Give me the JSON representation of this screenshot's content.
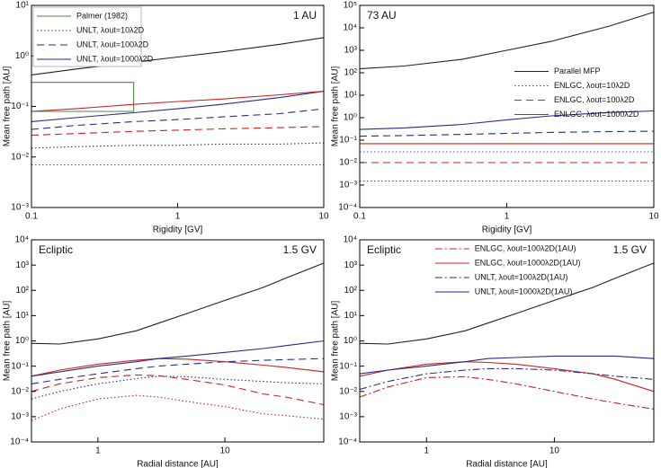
{
  "chart_data": [
    {
      "type": "line",
      "xscale": "log",
      "yscale": "log",
      "xlabel": "Rigidity [GV]",
      "ylabel": "Mean free path [AU]",
      "annotations": [
        {
          "text": "1 AU",
          "corner": "upper right"
        }
      ],
      "legend": "upper left",
      "xlim": [
        0.1,
        10
      ],
      "xticks": [
        0.1,
        1,
        10
      ],
      "ylim": [
        0.001,
        10
      ],
      "yticks": [
        {
          "value": 0.001,
          "label": "10⁻³"
        },
        {
          "value": 0.01,
          "label": "10⁻²"
        },
        {
          "value": 0.1,
          "label": "10⁻¹"
        },
        {
          "value": 1,
          "label": "10⁰"
        },
        {
          "value": 10,
          "label": "10¹"
        }
      ],
      "x": [
        0.1,
        0.2,
        0.5,
        1,
        2,
        5,
        10
      ],
      "series": [
        {
          "color": "#222222",
          "dash": "solid",
          "values": [
            0.42,
            0.55,
            0.75,
            0.95,
            1.2,
            1.7,
            2.3
          ]
        },
        {
          "name": "Palmer (1982)",
          "color": "#4a8a4a",
          "dash": "solid",
          "x": [
            0.1,
            0.5,
            0.5,
            0.1
          ],
          "values": [
            0.3,
            0.3,
            0.08,
            0.08
          ]
        },
        {
          "name": "UNLT, λout=10λ2D",
          "color": "#2a2a8a",
          "dash": "dotted",
          "values": [
            0.015,
            0.016,
            0.017,
            0.017,
            0.018,
            0.018,
            0.019
          ]
        },
        {
          "name": "UNLT, λout=100λ2D",
          "color": "#2a2a8a",
          "dash": "dashed",
          "values": [
            0.035,
            0.042,
            0.05,
            0.055,
            0.062,
            0.072,
            0.09
          ]
        },
        {
          "name": "UNLT, λout=1000λ2D",
          "color": "#2a2a8a",
          "dash": "solid",
          "values": [
            0.05,
            0.06,
            0.075,
            0.09,
            0.11,
            0.15,
            0.2
          ]
        },
        {
          "color": "#cc2222",
          "dash": "dotted",
          "values": [
            0.007,
            0.007,
            0.007,
            0.007,
            0.007,
            0.007,
            0.007
          ]
        },
        {
          "color": "#cc2222",
          "dash": "dashed",
          "values": [
            0.027,
            0.029,
            0.032,
            0.034,
            0.036,
            0.038,
            0.04
          ]
        },
        {
          "color": "#cc2222",
          "dash": "solid",
          "values": [
            0.08,
            0.09,
            0.11,
            0.125,
            0.14,
            0.17,
            0.2
          ]
        }
      ]
    },
    {
      "type": "line",
      "xscale": "log",
      "yscale": "log",
      "xlabel": "Rigidity [GV]",
      "ylabel": "Mean free path [AU]",
      "annotations": [
        {
          "text": "73 AU",
          "corner": "upper left"
        }
      ],
      "legend": "center right",
      "xlim": [
        0.1,
        10
      ],
      "xticks": [
        0.1,
        1,
        10
      ],
      "ylim": [
        0.0001,
        100000
      ],
      "yticks": [
        {
          "value": 0.0001,
          "label": "10⁻⁴"
        },
        {
          "value": 0.001,
          "label": "10⁻³"
        },
        {
          "value": 0.01,
          "label": "10⁻²"
        },
        {
          "value": 0.1,
          "label": "10⁻¹"
        },
        {
          "value": 1,
          "label": "10⁰"
        },
        {
          "value": 10,
          "label": "10¹"
        },
        {
          "value": 100,
          "label": "10²"
        },
        {
          "value": 1000,
          "label": "10³"
        },
        {
          "value": 10000,
          "label": "10⁴"
        },
        {
          "value": 100000,
          "label": "10⁵"
        }
      ],
      "x": [
        0.1,
        0.2,
        0.5,
        1,
        2,
        5,
        10
      ],
      "series": [
        {
          "name": "Parallel MFP",
          "color": "#222222",
          "dash": "solid",
          "values": [
            150,
            200,
            400,
            1000,
            2500,
            12000,
            50000
          ]
        },
        {
          "name": "ENLGC, λout=10λ2D",
          "color": "#cc2222",
          "dash": "dotted",
          "values": [
            0.0015,
            0.0015,
            0.0015,
            0.0015,
            0.0015,
            0.0015,
            0.0015
          ]
        },
        {
          "name": "ENLGC, λout=100λ2D",
          "color": "#cc2222",
          "dash": "dashed",
          "values": [
            0.01,
            0.01,
            0.01,
            0.01,
            0.01,
            0.01,
            0.01
          ]
        },
        {
          "name": "ENLGC, λout=1000λ2D",
          "color": "#cc2222",
          "dash": "solid",
          "values": [
            0.07,
            0.07,
            0.07,
            0.07,
            0.07,
            0.07,
            0.07
          ]
        },
        {
          "color": "#6a6aaa",
          "dash": "dotted",
          "values": [
            0.03,
            0.03,
            0.03,
            0.03,
            0.03,
            0.03,
            0.03
          ]
        },
        {
          "color": "#2a2a8a",
          "dash": "dashed",
          "values": [
            0.15,
            0.16,
            0.18,
            0.2,
            0.22,
            0.24,
            0.25
          ]
        },
        {
          "color": "#2a2a8a",
          "dash": "solid",
          "values": [
            0.3,
            0.35,
            0.5,
            0.8,
            1.2,
            1.7,
            2
          ]
        }
      ]
    },
    {
      "type": "line",
      "xscale": "log",
      "yscale": "log",
      "xlabel": "Radial distance [AU]",
      "ylabel": "Mean free path [AU]",
      "annotations": [
        {
          "text": "Ecliptic",
          "corner": "upper left"
        },
        {
          "text": "1.5 GV",
          "corner": "upper right"
        }
      ],
      "xlim": [
        0.3,
        60
      ],
      "xticks": [
        1,
        10
      ],
      "ylim": [
        0.0001,
        10000
      ],
      "yticks": [
        {
          "value": 0.0001,
          "label": "10⁻⁴"
        },
        {
          "value": 0.001,
          "label": "10⁻³"
        },
        {
          "value": 0.01,
          "label": "10⁻²"
        },
        {
          "value": 0.1,
          "label": "10⁻¹"
        },
        {
          "value": 1,
          "label": "10⁰"
        },
        {
          "value": 10,
          "label": "10¹"
        },
        {
          "value": 100,
          "label": "10²"
        },
        {
          "value": 1000,
          "label": "10³"
        },
        {
          "value": 10000,
          "label": "10⁴"
        }
      ],
      "x": [
        0.3,
        0.5,
        1,
        2,
        3,
        5,
        10,
        20,
        30,
        60
      ],
      "series": [
        {
          "color": "#222222",
          "dash": "solid",
          "values": [
            0.8,
            0.75,
            1.2,
            2.5,
            5,
            12,
            40,
            130,
            300,
            1200
          ]
        },
        {
          "color": "#cc2222",
          "dash": "solid",
          "values": [
            0.04,
            0.07,
            0.12,
            0.17,
            0.2,
            0.19,
            0.15,
            0.11,
            0.09,
            0.06
          ]
        },
        {
          "color": "#cc2222",
          "dash": "dashed",
          "values": [
            0.01,
            0.02,
            0.035,
            0.045,
            0.042,
            0.03,
            0.018,
            0.008,
            0.006,
            0.003
          ]
        },
        {
          "color": "#cc2222",
          "dash": "dotted",
          "values": [
            0.0007,
            0.002,
            0.005,
            0.007,
            0.006,
            0.004,
            0.0025,
            0.0013,
            0.0011,
            0.0008
          ]
        },
        {
          "color": "#2a2a8a",
          "dash": "solid",
          "values": [
            0.04,
            0.06,
            0.1,
            0.15,
            0.2,
            0.25,
            0.35,
            0.5,
            0.65,
            1
          ]
        },
        {
          "color": "#2a2a8a",
          "dash": "dashed",
          "values": [
            0.02,
            0.03,
            0.05,
            0.08,
            0.1,
            0.12,
            0.15,
            0.17,
            0.18,
            0.2
          ]
        },
        {
          "color": "#2a2a8a",
          "dash": "dotted",
          "values": [
            0.005,
            0.01,
            0.02,
            0.032,
            0.04,
            0.038,
            0.03,
            0.025,
            0.022,
            0.02
          ]
        }
      ]
    },
    {
      "type": "line",
      "xscale": "log",
      "yscale": "log",
      "xlabel": "Radial distance [AU]",
      "ylabel": "Mean free path [AU]",
      "annotations": [
        {
          "text": "Ecliptic",
          "corner": "upper left"
        },
        {
          "text": "1.5 GV",
          "corner": "upper right"
        }
      ],
      "legend": "upper center",
      "xlim": [
        0.3,
        60
      ],
      "xticks": [
        1,
        10
      ],
      "ylim": [
        0.0001,
        10000
      ],
      "yticks": [
        {
          "value": 0.0001,
          "label": "10⁻⁴"
        },
        {
          "value": 0.001,
          "label": "10⁻³"
        },
        {
          "value": 0.01,
          "label": "10⁻²"
        },
        {
          "value": 0.1,
          "label": "10⁻¹"
        },
        {
          "value": 1,
          "label": "10⁰"
        },
        {
          "value": 10,
          "label": "10¹"
        },
        {
          "value": 100,
          "label": "10²"
        },
        {
          "value": 1000,
          "label": "10³"
        },
        {
          "value": 10000,
          "label": "10⁴"
        }
      ],
      "x": [
        0.3,
        0.5,
        1,
        2,
        3,
        5,
        10,
        20,
        30,
        60
      ],
      "series": [
        {
          "color": "#222222",
          "dash": "solid",
          "values": [
            0.8,
            0.75,
            1.2,
            2.5,
            5,
            12,
            40,
            130,
            300,
            1200
          ]
        },
        {
          "name": "ENLGC, λout=100λ2D(1AU)",
          "color": "#cc2222",
          "dash": "dashdot",
          "values": [
            0.006,
            0.015,
            0.035,
            0.038,
            0.03,
            0.02,
            0.01,
            0.005,
            0.0035,
            0.002
          ]
        },
        {
          "name": "ENLGC, λout=1000λ2D(1AU)",
          "color": "#cc2222",
          "dash": "solid",
          "values": [
            0.04,
            0.07,
            0.12,
            0.15,
            0.14,
            0.12,
            0.08,
            0.05,
            0.03,
            0.01
          ]
        },
        {
          "name": "UNLT, λout=100λ2D(1AU)",
          "color": "#2a2a8a",
          "dash": "dashdot",
          "values": [
            0.012,
            0.025,
            0.05,
            0.07,
            0.08,
            0.08,
            0.07,
            0.05,
            0.04,
            0.03
          ]
        },
        {
          "name": "UNLT, λout=1000λ2D(1AU)",
          "color": "#2a2a8a",
          "dash": "solid",
          "values": [
            0.05,
            0.07,
            0.1,
            0.15,
            0.2,
            0.22,
            0.25,
            0.25,
            0.25,
            0.2
          ]
        }
      ]
    }
  ]
}
